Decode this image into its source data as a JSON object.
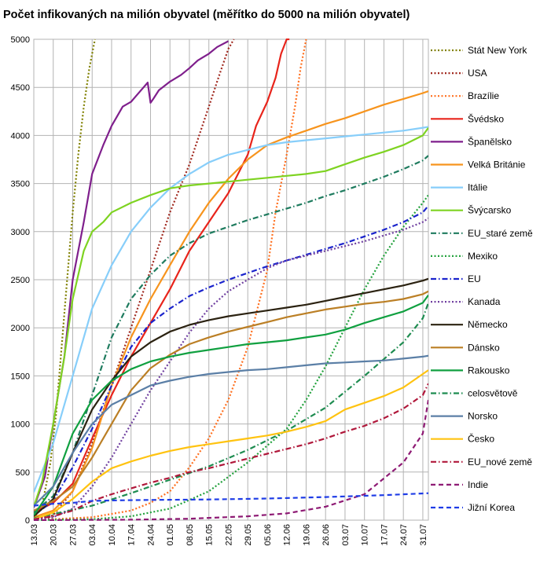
{
  "chart_data": {
    "type": "line",
    "title": "Počet infikovaných na milión obyvatel (měřítko do 5000 na milión obyvatel)",
    "xlabel": "",
    "ylabel": "",
    "ylim": [
      0,
      5000
    ],
    "yticks": [
      0,
      500,
      1000,
      1500,
      2000,
      2500,
      3000,
      3500,
      4000,
      4500,
      5000
    ],
    "xlim": [
      "13.03",
      "02.08"
    ],
    "xticks": [
      "13.03",
      "20.03",
      "27.03",
      "03.04",
      "10.04",
      "17.04",
      "24.04",
      "01.05",
      "08.05",
      "15.05",
      "22.05",
      "29.05",
      "05.06",
      "12.06",
      "19.06",
      "26.06",
      "03.07",
      "10.07",
      "17.07",
      "24.07",
      "31.07"
    ],
    "grid": true,
    "legend_position": "right",
    "series": [
      {
        "name": "Stát New York",
        "color": "#808000",
        "dash": "dot",
        "x": [
          "13.03",
          "16.03",
          "19.03",
          "21.03",
          "23.03",
          "25.03",
          "27.03",
          "29.03",
          "31.03",
          "02.04",
          "04.04"
        ],
        "y": [
          20,
          150,
          600,
          1100,
          1800,
          2500,
          3200,
          3800,
          4300,
          4700,
          5000
        ]
      },
      {
        "name": "USA",
        "color": "#a0281e",
        "dash": "dot",
        "x": [
          "13.03",
          "20.03",
          "27.03",
          "03.04",
          "10.04",
          "17.04",
          "24.04",
          "01.05",
          "08.05",
          "15.05",
          "19.05",
          "22.05",
          "24.05"
        ],
        "y": [
          5,
          50,
          300,
          800,
          1400,
          2000,
          2600,
          3200,
          3700,
          4300,
          4650,
          4900,
          5000
        ]
      },
      {
        "name": "Brazílie",
        "color": "#ff6f1e",
        "dash": "dot",
        "x": [
          "13.03",
          "03.04",
          "17.04",
          "24.04",
          "01.05",
          "08.05",
          "15.05",
          "22.05",
          "29.05",
          "05.06",
          "08.06",
          "12.06",
          "15.06",
          "17.06",
          "19.06"
        ],
        "y": [
          0,
          30,
          100,
          180,
          300,
          550,
          850,
          1250,
          1800,
          2600,
          3200,
          3800,
          4300,
          4700,
          5000
        ]
      },
      {
        "name": "Švédsko",
        "color": "#e8241b",
        "dash": "solid",
        "x": [
          "13.03",
          "20.03",
          "27.03",
          "03.04",
          "10.04",
          "17.04",
          "24.04",
          "01.05",
          "08.05",
          "15.05",
          "22.05",
          "29.05",
          "01.06",
          "05.06",
          "08.06",
          "10.06",
          "12.06",
          "13.06"
        ],
        "y": [
          80,
          180,
          380,
          850,
          1300,
          1700,
          2050,
          2400,
          2800,
          3100,
          3400,
          3800,
          4100,
          4350,
          4600,
          4850,
          5000,
          5000
        ]
      },
      {
        "name": "Španělsko",
        "color": "#7f1f8c",
        "dash": "solid",
        "x": [
          "13.03",
          "17.03",
          "20.03",
          "24.03",
          "27.03",
          "31.03",
          "03.04",
          "07.04",
          "10.04",
          "14.04",
          "17.04",
          "20.04",
          "23.04",
          "24.04",
          "25.04",
          "27.04",
          "01.05",
          "05.05",
          "08.05",
          "11.05",
          "15.05",
          "18.05",
          "22.05"
        ],
        "y": [
          130,
          450,
          1000,
          1700,
          2500,
          3100,
          3600,
          3900,
          4100,
          4300,
          4350,
          4450,
          4550,
          4340,
          4380,
          4470,
          4560,
          4630,
          4700,
          4780,
          4850,
          4920,
          4980
        ]
      },
      {
        "name": "Velká Británie",
        "color": "#f7941d",
        "dash": "solid",
        "x": [
          "13.03",
          "20.03",
          "27.03",
          "03.04",
          "10.04",
          "17.04",
          "24.04",
          "01.05",
          "08.05",
          "15.05",
          "22.05",
          "29.05",
          "05.06",
          "12.06",
          "19.06",
          "26.06",
          "03.07",
          "10.07",
          "17.07",
          "24.07",
          "31.07",
          "02.08"
        ],
        "y": [
          30,
          100,
          300,
          750,
          1400,
          1900,
          2300,
          2650,
          3000,
          3300,
          3550,
          3750,
          3900,
          3980,
          4050,
          4120,
          4180,
          4250,
          4320,
          4380,
          4440,
          4460
        ]
      },
      {
        "name": "Itálie",
        "color": "#87cefa",
        "dash": "solid",
        "x": [
          "13.03",
          "20.03",
          "27.03",
          "03.04",
          "10.04",
          "17.04",
          "24.04",
          "01.05",
          "08.05",
          "15.05",
          "22.05",
          "29.05",
          "05.06",
          "12.06",
          "19.06",
          "26.06",
          "03.07",
          "10.07",
          "17.07",
          "24.07",
          "31.07",
          "02.08"
        ],
        "y": [
          290,
          800,
          1500,
          2200,
          2650,
          3000,
          3250,
          3450,
          3600,
          3720,
          3800,
          3850,
          3900,
          3930,
          3950,
          3970,
          3990,
          4010,
          4030,
          4050,
          4080,
          4090
        ]
      },
      {
        "name": "Švýcarsko",
        "color": "#7ed321",
        "dash": "solid",
        "x": [
          "13.03",
          "16.03",
          "20.03",
          "24.03",
          "27.03",
          "31.03",
          "03.04",
          "07.04",
          "10.04",
          "17.04",
          "24.04",
          "01.05",
          "08.05",
          "15.05",
          "22.05",
          "29.05",
          "05.06",
          "12.06",
          "19.06",
          "26.06",
          "03.07",
          "10.07",
          "17.07",
          "24.07",
          "31.07",
          "02.08"
        ],
        "y": [
          140,
          400,
          1000,
          1700,
          2300,
          2800,
          3000,
          3100,
          3200,
          3300,
          3380,
          3450,
          3480,
          3500,
          3520,
          3540,
          3560,
          3580,
          3600,
          3630,
          3700,
          3770,
          3830,
          3900,
          4000,
          4080
        ]
      },
      {
        "name": "EU_staré země",
        "color": "#1e7b5e",
        "dash": "dashdot",
        "x": [
          "13.03",
          "20.03",
          "27.03",
          "03.04",
          "10.04",
          "17.04",
          "24.04",
          "01.05",
          "08.05",
          "15.05",
          "22.05",
          "29.05",
          "05.06",
          "12.06",
          "19.06",
          "26.06",
          "03.07",
          "10.07",
          "17.07",
          "24.07",
          "31.07",
          "02.08"
        ],
        "y": [
          80,
          250,
          700,
          1300,
          1900,
          2300,
          2550,
          2750,
          2880,
          2980,
          3050,
          3120,
          3180,
          3240,
          3300,
          3370,
          3430,
          3500,
          3570,
          3650,
          3740,
          3790
        ]
      },
      {
        "name": "Mexiko",
        "color": "#22a13c",
        "dash": "dot",
        "x": [
          "13.03",
          "03.04",
          "17.04",
          "01.05",
          "15.05",
          "29.05",
          "12.06",
          "19.06",
          "26.06",
          "03.07",
          "10.07",
          "17.07",
          "24.07",
          "31.07",
          "02.08"
        ],
        "y": [
          0,
          10,
          40,
          120,
          300,
          600,
          950,
          1250,
          1600,
          2000,
          2400,
          2750,
          3050,
          3300,
          3380
        ]
      },
      {
        "name": "EU",
        "color": "#1a23cc",
        "dash": "dashdot",
        "x": [
          "13.03",
          "20.03",
          "27.03",
          "03.04",
          "10.04",
          "17.04",
          "24.04",
          "01.05",
          "08.05",
          "15.05",
          "22.05",
          "29.05",
          "05.06",
          "12.06",
          "19.06",
          "26.06",
          "03.07",
          "10.07",
          "17.07",
          "24.07",
          "31.07",
          "02.08"
        ],
        "y": [
          50,
          200,
          550,
          950,
          1400,
          1800,
          2050,
          2200,
          2330,
          2420,
          2500,
          2570,
          2640,
          2700,
          2760,
          2820,
          2880,
          2950,
          3020,
          3100,
          3200,
          3270
        ]
      },
      {
        "name": "Kanada",
        "color": "#7040a0",
        "dash": "dot",
        "x": [
          "13.03",
          "20.03",
          "27.03",
          "03.04",
          "10.04",
          "17.04",
          "24.04",
          "01.05",
          "08.05",
          "15.05",
          "22.05",
          "29.05",
          "05.06",
          "12.06",
          "19.06",
          "26.06",
          "03.07",
          "10.07",
          "17.07",
          "24.07",
          "31.07",
          "02.08"
        ],
        "y": [
          5,
          30,
          120,
          350,
          650,
          1000,
          1350,
          1650,
          1950,
          2200,
          2380,
          2500,
          2620,
          2700,
          2750,
          2800,
          2850,
          2900,
          2960,
          3020,
          3100,
          3140
        ]
      },
      {
        "name": "Německo",
        "color": "#2b2211",
        "dash": "solid",
        "x": [
          "13.03",
          "20.03",
          "27.03",
          "03.04",
          "10.04",
          "17.04",
          "24.04",
          "01.05",
          "08.05",
          "15.05",
          "22.05",
          "29.05",
          "05.06",
          "12.06",
          "19.06",
          "26.06",
          "03.07",
          "10.07",
          "17.07",
          "24.07",
          "31.07",
          "02.08"
        ],
        "y": [
          40,
          220,
          700,
          1150,
          1450,
          1700,
          1850,
          1960,
          2030,
          2080,
          2120,
          2150,
          2180,
          2210,
          2240,
          2280,
          2320,
          2360,
          2400,
          2440,
          2490,
          2510
        ]
      },
      {
        "name": "Dánsko",
        "color": "#bb7f25",
        "dash": "solid",
        "x": [
          "13.03",
          "20.03",
          "27.03",
          "03.04",
          "10.04",
          "17.04",
          "24.04",
          "01.05",
          "08.05",
          "15.05",
          "22.05",
          "29.05",
          "05.06",
          "12.06",
          "19.06",
          "26.06",
          "03.07",
          "10.07",
          "17.07",
          "24.07",
          "31.07",
          "02.08"
        ],
        "y": [
          100,
          200,
          350,
          650,
          1000,
          1350,
          1580,
          1720,
          1830,
          1900,
          1960,
          2010,
          2060,
          2110,
          2150,
          2190,
          2220,
          2250,
          2270,
          2300,
          2350,
          2380
        ]
      },
      {
        "name": "Rakousko",
        "color": "#10a040",
        "dash": "solid",
        "x": [
          "13.03",
          "20.03",
          "27.03",
          "03.04",
          "10.04",
          "17.04",
          "24.04",
          "01.05",
          "08.05",
          "15.05",
          "22.05",
          "29.05",
          "05.06",
          "12.06",
          "19.06",
          "26.06",
          "03.07",
          "10.07",
          "17.07",
          "24.07",
          "31.07",
          "02.08"
        ],
        "y": [
          50,
          350,
          900,
          1250,
          1450,
          1570,
          1650,
          1700,
          1740,
          1770,
          1800,
          1830,
          1850,
          1870,
          1900,
          1930,
          1980,
          2050,
          2110,
          2170,
          2260,
          2340
        ]
      },
      {
        "name": "celosvětově",
        "color": "#1e8c50",
        "dash": "dashdot",
        "x": [
          "13.03",
          "03.04",
          "17.04",
          "01.05",
          "15.05",
          "29.05",
          "12.06",
          "26.06",
          "10.07",
          "24.07",
          "31.07",
          "02.08"
        ],
        "y": [
          20,
          150,
          280,
          420,
          560,
          730,
          930,
          1170,
          1500,
          1850,
          2100,
          2260
        ]
      },
      {
        "name": "Norsko",
        "color": "#5b7fa6",
        "dash": "solid",
        "x": [
          "13.03",
          "20.03",
          "27.03",
          "03.04",
          "10.04",
          "17.04",
          "24.04",
          "01.05",
          "08.05",
          "15.05",
          "22.05",
          "29.05",
          "05.06",
          "12.06",
          "19.06",
          "26.06",
          "03.07",
          "10.07",
          "17.07",
          "24.07",
          "31.07",
          "02.08"
        ],
        "y": [
          150,
          350,
          700,
          1000,
          1200,
          1300,
          1400,
          1450,
          1490,
          1520,
          1540,
          1560,
          1570,
          1590,
          1610,
          1630,
          1640,
          1650,
          1660,
          1680,
          1700,
          1710
        ]
      },
      {
        "name": "Česko",
        "color": "#ffc310",
        "dash": "solid",
        "x": [
          "13.03",
          "20.03",
          "27.03",
          "03.04",
          "10.04",
          "17.04",
          "24.04",
          "01.05",
          "08.05",
          "15.05",
          "22.05",
          "29.05",
          "05.06",
          "12.06",
          "19.06",
          "26.06",
          "03.07",
          "10.07",
          "17.07",
          "24.07",
          "31.07",
          "02.08"
        ],
        "y": [
          10,
          80,
          220,
          400,
          540,
          610,
          670,
          720,
          760,
          790,
          820,
          850,
          880,
          920,
          970,
          1030,
          1150,
          1220,
          1290,
          1380,
          1520,
          1560
        ]
      },
      {
        "name": "EU_nové země",
        "color": "#b0173a",
        "dash": "dashdot",
        "x": [
          "13.03",
          "20.03",
          "27.03",
          "03.04",
          "10.04",
          "17.04",
          "24.04",
          "01.05",
          "08.05",
          "15.05",
          "22.05",
          "29.05",
          "05.06",
          "12.06",
          "19.06",
          "26.06",
          "03.07",
          "10.07",
          "17.07",
          "24.07",
          "31.07",
          "02.08"
        ],
        "y": [
          10,
          40,
          100,
          200,
          270,
          330,
          390,
          440,
          500,
          540,
          590,
          640,
          690,
          740,
          790,
          850,
          920,
          980,
          1060,
          1160,
          1300,
          1420
        ]
      },
      {
        "name": "Indie",
        "color": "#8e1a74",
        "dash": "dash",
        "x": [
          "13.03",
          "17.04",
          "08.05",
          "29.05",
          "12.06",
          "26.06",
          "10.07",
          "24.07",
          "31.07",
          "02.08"
        ],
        "y": [
          0,
          5,
          15,
          40,
          70,
          140,
          270,
          600,
          900,
          1250
        ]
      },
      {
        "name": "Jižní Korea",
        "color": "#1e3ce6",
        "dash": "dash",
        "x": [
          "13.03",
          "20.03",
          "27.03",
          "03.04",
          "10.04",
          "24.04",
          "15.05",
          "05.06",
          "26.06",
          "17.07",
          "02.08"
        ],
        "y": [
          150,
          170,
          180,
          200,
          205,
          210,
          215,
          225,
          240,
          260,
          280
        ]
      }
    ]
  }
}
